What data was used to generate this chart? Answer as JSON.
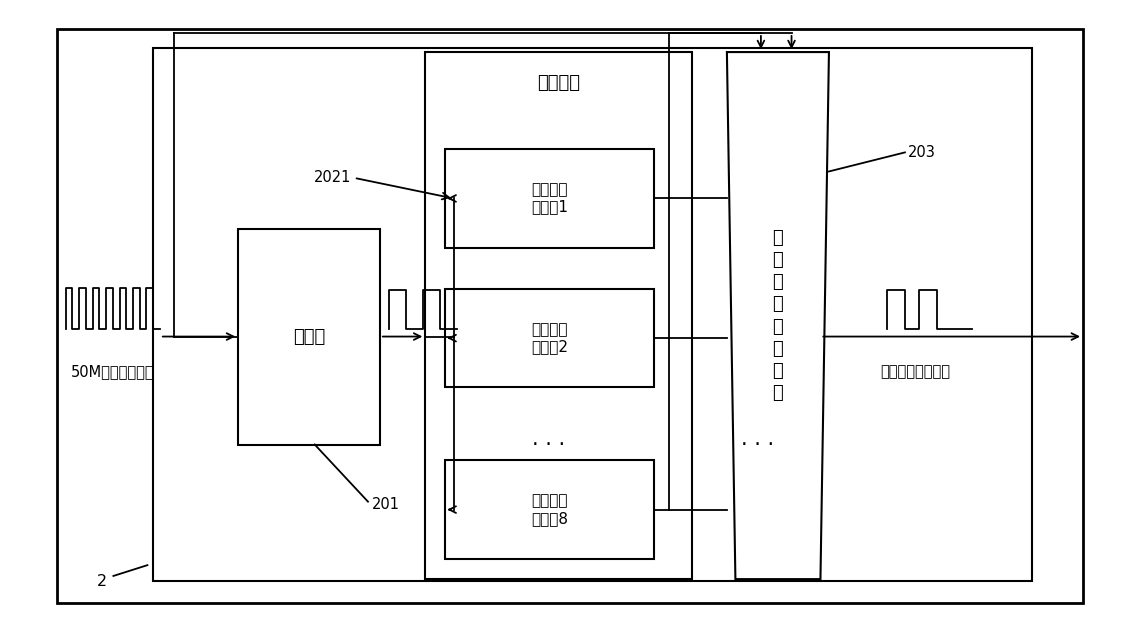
{
  "bg_color": "#ffffff",
  "border_color": "#000000",
  "text_color": "#000000",
  "divider_label": "分频器",
  "bool_network_label": "布尔网络",
  "burley_label": "伯\n务\n利\n提\n取\n状\n态\n机",
  "osc_labels": [
    "异或环形\n振荡器1",
    "异或环形\n振荡器2",
    "异或环形\n振荡器8"
  ],
  "label_201": "201",
  "label_2021": "2021",
  "label_203": "203",
  "label_2": "2",
  "input_signal_label": "50M基准时钟信号",
  "output_signal_label": "低速泊松脉冲信号"
}
